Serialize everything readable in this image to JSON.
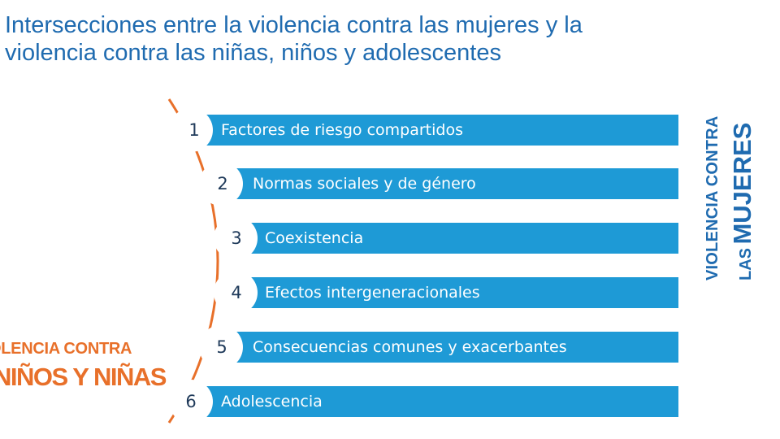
{
  "title": {
    "line1": "Intersecciones entre la violencia contra las mujeres y la",
    "line2": "violencia contra las niñas, niños y adolescentes"
  },
  "items": [
    {
      "number": "1",
      "label": "Factores de riesgo compartidos"
    },
    {
      "number": "2",
      "label": "Normas sociales y de género"
    },
    {
      "number": "3",
      "label": "Coexistencia"
    },
    {
      "number": "4",
      "label": "Efectos intergeneracionales"
    },
    {
      "number": "5",
      "label": "Consecuencias comunes y exacerbantes"
    },
    {
      "number": "6",
      "label": "Adolescencia"
    }
  ],
  "side_right": {
    "line1": "VIOLENCIA CONTRA",
    "line2_prefix": "LAS",
    "line2_main": "MUJERES"
  },
  "side_left": {
    "line1": "OLENCIA CONTRA",
    "line2": "NIÑOS Y NIÑAS"
  },
  "colors": {
    "bar": "#1e9ad6",
    "title": "#1f6bb0",
    "accent_orange": "#e8702a",
    "number": "#1f3a5a"
  }
}
